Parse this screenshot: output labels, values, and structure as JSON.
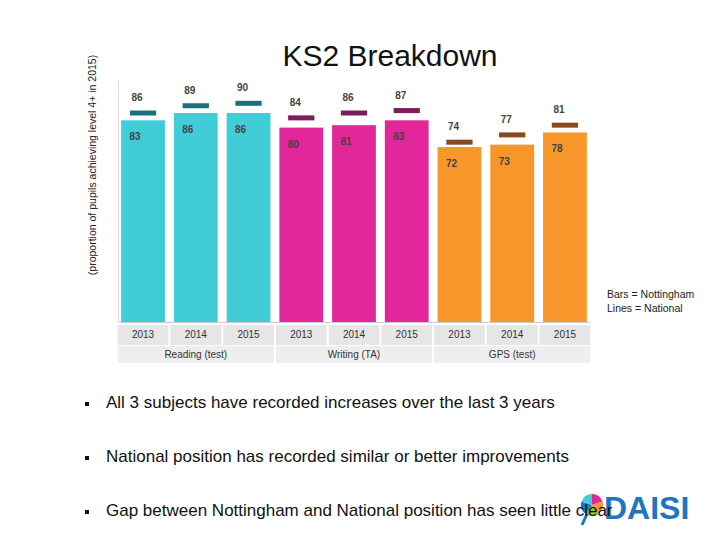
{
  "chart_data": {
    "type": "bar",
    "title": "KS2 Breakdown",
    "y_label": "(proportion of pupils achieving level 4+ in 2015)",
    "categories": [
      "2013",
      "2014",
      "2015",
      "2013",
      "2014",
      "2015",
      "2013",
      "2014",
      "2015"
    ],
    "groups": [
      "Reading (test)",
      "Writing (TA)",
      "GPS (test)"
    ],
    "ylim": [
      0,
      100
    ],
    "tick_labels": "x",
    "grid": false,
    "data_labels": true,
    "legend": "lower right",
    "series": [
      {
        "name": "Bars = Nottingham",
        "type": "bar",
        "colors": [
          "#40cdd8",
          "#40cdd8",
          "#40cdd8",
          "#e2279b",
          "#e2279b",
          "#e2279b",
          "#f7962b",
          "#f7962b",
          "#f7962b"
        ],
        "values": [
          83,
          86,
          86,
          80,
          81,
          83,
          72,
          73,
          78
        ]
      },
      {
        "name": "Lines = National",
        "type": "scatter",
        "marker": "hline",
        "colors": [
          "#1e6e7e",
          "#1e6e7e",
          "#1e6e7e",
          "#7b1e5e",
          "#7b1e5e",
          "#7b1e5e",
          "#8a4a1f",
          "#8a4a1f",
          "#8a4a1f"
        ],
        "values": [
          86,
          89,
          90,
          84,
          86,
          87,
          74,
          77,
          81
        ]
      }
    ]
  },
  "bullets": [
    "All 3 subjects have recorded increases over the last 3 years",
    "National position has recorded similar or better improvements",
    "Gap between Nottingham and National position has seen little clear improvement"
  ],
  "logo": "DAISI"
}
